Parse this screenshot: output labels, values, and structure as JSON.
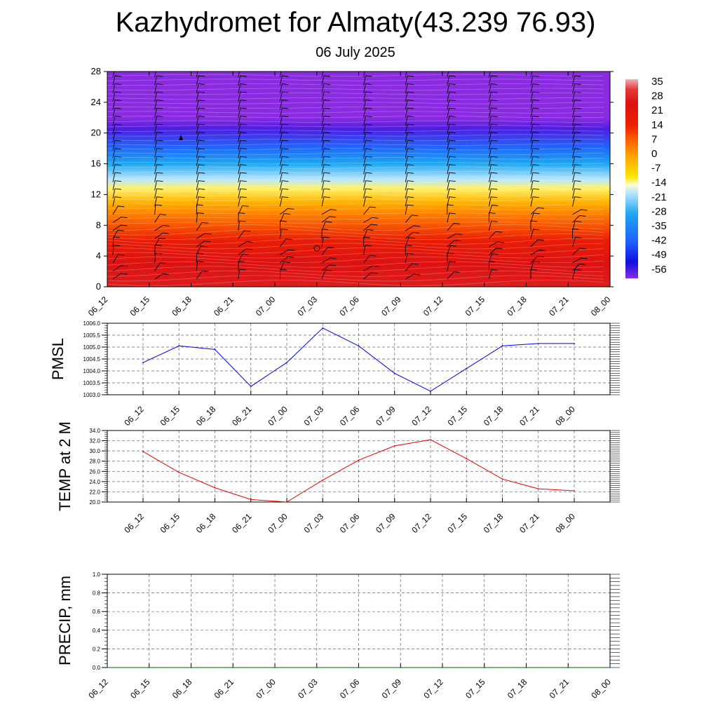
{
  "title": "Kazhydromet for Almaty(43.239 76.93)",
  "subtitle": "06 July 2025",
  "time_labels": [
    "06_12",
    "06_15",
    "06_18",
    "06_21",
    "07_00",
    "07_03",
    "07_06",
    "07_09",
    "07_12",
    "07_15",
    "07_18",
    "07_21",
    "08_00"
  ],
  "chart_data": [
    {
      "type": "heatmap",
      "name": "temperature-cross-section",
      "x": [
        "06_12",
        "06_15",
        "06_18",
        "06_21",
        "07_00",
        "07_03",
        "07_06",
        "07_09",
        "07_12",
        "07_15",
        "07_18",
        "07_21",
        "08_00"
      ],
      "y_ticks": [
        0,
        4,
        8,
        12,
        16,
        20,
        24,
        28
      ],
      "ylim": [
        0,
        28
      ],
      "colorbar": {
        "labels": [
          "35",
          "28",
          "21",
          "14",
          "7",
          "0",
          "-7",
          "-14",
          "-21",
          "-28",
          "-35",
          "-42",
          "-49",
          "-56"
        ],
        "stops": [
          {
            "v": 38,
            "color": "#f2b0b0"
          },
          {
            "v": 33,
            "color": "#e23a3a"
          },
          {
            "v": 26,
            "color": "#dd1111"
          },
          {
            "v": 15,
            "color": "#ee2200"
          },
          {
            "v": 7,
            "color": "#ff6a00"
          },
          {
            "v": 0,
            "color": "#ffa500"
          },
          {
            "v": -10,
            "color": "#ffe600"
          },
          {
            "v": -14,
            "color": "#fffdd0"
          },
          {
            "v": -18,
            "color": "#b8e6ff"
          },
          {
            "v": -28,
            "color": "#1ea8f0"
          },
          {
            "v": -42,
            "color": "#1e60ff"
          },
          {
            "v": -52,
            "color": "#1010e0"
          },
          {
            "v": -60,
            "color": "#8a2be2"
          }
        ]
      },
      "profile": [
        {
          "z": 0,
          "t": 28
        },
        {
          "z": 3,
          "t": 26
        },
        {
          "z": 6,
          "t": 18
        },
        {
          "z": 9,
          "t": 6
        },
        {
          "z": 11,
          "t": -2
        },
        {
          "z": 12.8,
          "t": -12
        },
        {
          "z": 14,
          "t": -18
        },
        {
          "z": 16,
          "t": -28
        },
        {
          "z": 18,
          "t": -40
        },
        {
          "z": 20.5,
          "t": -56
        },
        {
          "z": 22,
          "t": -60
        },
        {
          "z": 28,
          "t": -60
        }
      ],
      "wind_barbs": true
    },
    {
      "type": "line",
      "name": "PMSL",
      "ylabel": "PMSL",
      "x": [
        "06_12",
        "06_15",
        "06_18",
        "06_21",
        "07_00",
        "07_03",
        "07_06",
        "07_09",
        "07_12",
        "07_15",
        "07_18",
        "07_21",
        "08_00"
      ],
      "values": [
        1004.35,
        1005.05,
        1004.9,
        1003.35,
        1004.35,
        1005.8,
        1005.05,
        1003.9,
        1003.15,
        1004.1,
        1005.05,
        1005.15,
        1005.15
      ],
      "ylim": [
        1003.0,
        1006.0
      ],
      "yticks": [
        "1003.0",
        "1003.5",
        "1004.0",
        "1004.5",
        "1005.0",
        "1005.5",
        "1006.0"
      ],
      "color": "#0000ee",
      "grid": true
    },
    {
      "type": "line",
      "name": "TEMP at 2 M",
      "ylabel": "TEMP at 2 M",
      "x": [
        "06_12",
        "06_15",
        "06_18",
        "06_21",
        "07_00",
        "07_03",
        "07_06",
        "07_09",
        "07_12",
        "07_15",
        "07_18",
        "07_21",
        "08_00"
      ],
      "values": [
        29.9,
        25.8,
        22.8,
        20.5,
        20.0,
        24.3,
        28.2,
        31.0,
        32.2,
        28.5,
        24.5,
        22.6,
        22.2
      ],
      "ylim": [
        20.0,
        34.0
      ],
      "yticks": [
        "20.0",
        "22.0",
        "24.0",
        "26.0",
        "28.0",
        "30.0",
        "32.0",
        "34.0"
      ],
      "color": "#ee0000",
      "grid": true
    },
    {
      "type": "line",
      "name": "PRECIP, mm",
      "ylabel": "PRECIP, mm",
      "x": [
        "06_12",
        "06_15",
        "06_18",
        "06_21",
        "07_00",
        "07_03",
        "07_06",
        "07_09",
        "07_12",
        "07_15",
        "07_18",
        "07_21",
        "08_00"
      ],
      "values": [
        0,
        0,
        0,
        0,
        0,
        0,
        0,
        0,
        0,
        0,
        0,
        0,
        0
      ],
      "ylim": [
        0.0,
        1.0
      ],
      "yticks": [
        "0.0",
        "0.2",
        "0.4",
        "0.6",
        "0.8",
        "1.0"
      ],
      "color": "#006400",
      "grid": true
    }
  ]
}
